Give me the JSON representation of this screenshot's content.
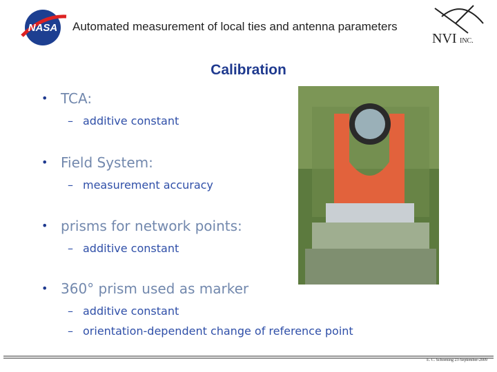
{
  "header": {
    "title": "Automated measurement of local ties and antenna parameters",
    "logo_left": "NASA",
    "logo_right": "NVI",
    "logo_right_suffix": "INC."
  },
  "slide": {
    "title": "Calibration",
    "bullets": [
      {
        "text": "TCA:",
        "subitems": [
          "additive constant"
        ]
      },
      {
        "text": "Field System:",
        "subitems": [
          "measurement accuracy"
        ]
      },
      {
        "text": "prisms for network points:",
        "subitems": [
          "additive constant"
        ]
      },
      {
        "text": "360° prism used as marker",
        "subitems": [
          "additive constant",
          "orientation-dependent change of reference point"
        ]
      }
    ]
  },
  "footer": {
    "text": "E. C. Schoening 23-September-2009"
  }
}
